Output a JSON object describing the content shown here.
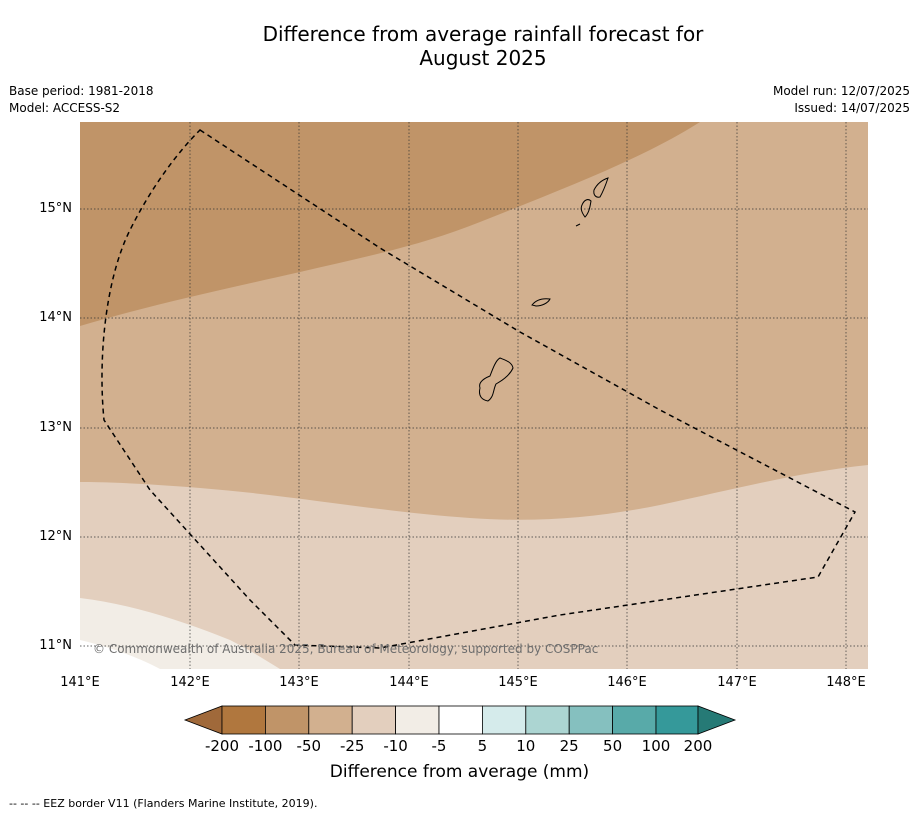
{
  "title": "Difference from average rainfall forecast for\nAugust 2025",
  "meta": {
    "base_period": "Base period: 1981-2018",
    "model": "Model: ACCESS-S2",
    "model_run": "Model run: 12/07/2025",
    "issued": "Issued: 14/07/2025"
  },
  "map": {
    "lon_range": [
      141.0,
      148.2
    ],
    "lat_range": [
      10.8,
      15.8
    ],
    "lon_ticks": [
      "141°E",
      "142°E",
      "143°E",
      "144°E",
      "145°E",
      "146°E",
      "147°E",
      "148°E"
    ],
    "lat_ticks": [
      "15°N",
      "14°N",
      "13°N",
      "12°N",
      "11°N"
    ],
    "copyright": "© Commonwealth of Australia 2025, Bureau of Meteorology, supported by COSPPac"
  },
  "colorbar": {
    "labels": [
      "-200",
      "-100",
      "-50",
      "-25",
      "-10",
      "-5",
      "5",
      "10",
      "25",
      "50",
      "100",
      "200"
    ],
    "colors": [
      "#a0693a",
      "#b0773e",
      "#c09468",
      "#d2b08f",
      "#e3cfbe",
      "#f2ede6",
      "#ffffff",
      "#d5ebeb",
      "#acd5d2",
      "#85c0bf",
      "#58aaa9",
      "#35999a",
      "#267a76"
    ],
    "title": "Difference from average (mm)"
  },
  "footnote": "--  --  -- EEZ border V11 (Flanders Marine Institute, 2019)."
}
